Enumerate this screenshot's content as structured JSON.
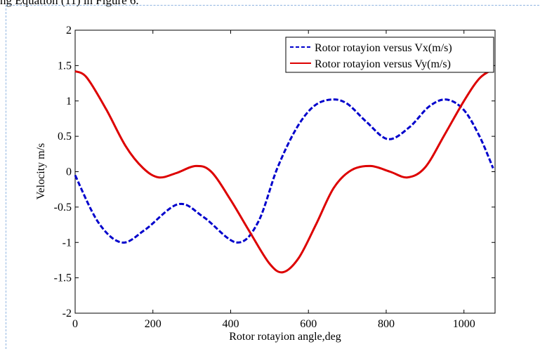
{
  "header_text": "ng Equation (11) in Figure 6.",
  "chart_data": {
    "type": "line",
    "title": "",
    "xlabel": "Rotor rotayion angle,deg",
    "ylabel": "Velocity m/s",
    "xlim": [
      0,
      1080
    ],
    "ylim": [
      -2,
      2
    ],
    "x_ticks": [
      0,
      200,
      400,
      600,
      800,
      1000
    ],
    "y_ticks": [
      -2,
      -1.5,
      -1,
      -0.5,
      0,
      0.5,
      1,
      1.5,
      2
    ],
    "y_tick_labels": [
      "-2",
      "-1.5",
      "-1",
      "-0.5",
      "0",
      "0.5",
      "1",
      "1.5",
      "2"
    ],
    "grid": false,
    "legend_position": "top-right",
    "series": [
      {
        "name": "Rotor rotayion versus Vx(m/s)",
        "color": "#0000cc",
        "style": "dashed",
        "x": [
          0,
          60,
          120,
          180,
          265,
          330,
          415,
          470,
          520,
          570,
          615,
          660,
          700,
          750,
          805,
          860,
          910,
          955,
          1000,
          1040,
          1075
        ],
        "y": [
          -0.05,
          -0.72,
          -1.0,
          -0.82,
          -0.46,
          -0.64,
          -1.0,
          -0.72,
          0.05,
          0.62,
          0.93,
          1.02,
          0.96,
          0.7,
          0.46,
          0.63,
          0.92,
          1.02,
          0.87,
          0.5,
          0.05
        ]
      },
      {
        "name": "Rotor rotayion versus Vy(m/s)",
        "color": "#dd0000",
        "style": "solid",
        "x": [
          0,
          30,
          80,
          130,
          175,
          215,
          260,
          310,
          350,
          400,
          450,
          500,
          535,
          575,
          620,
          665,
          710,
          760,
          810,
          855,
          900,
          950,
          1000,
          1040,
          1075
        ],
        "y": [
          1.42,
          1.33,
          0.88,
          0.36,
          0.05,
          -0.08,
          -0.02,
          0.08,
          0.0,
          -0.4,
          -0.86,
          -1.3,
          -1.42,
          -1.22,
          -0.74,
          -0.23,
          0.02,
          0.08,
          0.0,
          -0.08,
          0.06,
          0.52,
          1.0,
          1.32,
          1.45
        ]
      }
    ]
  }
}
